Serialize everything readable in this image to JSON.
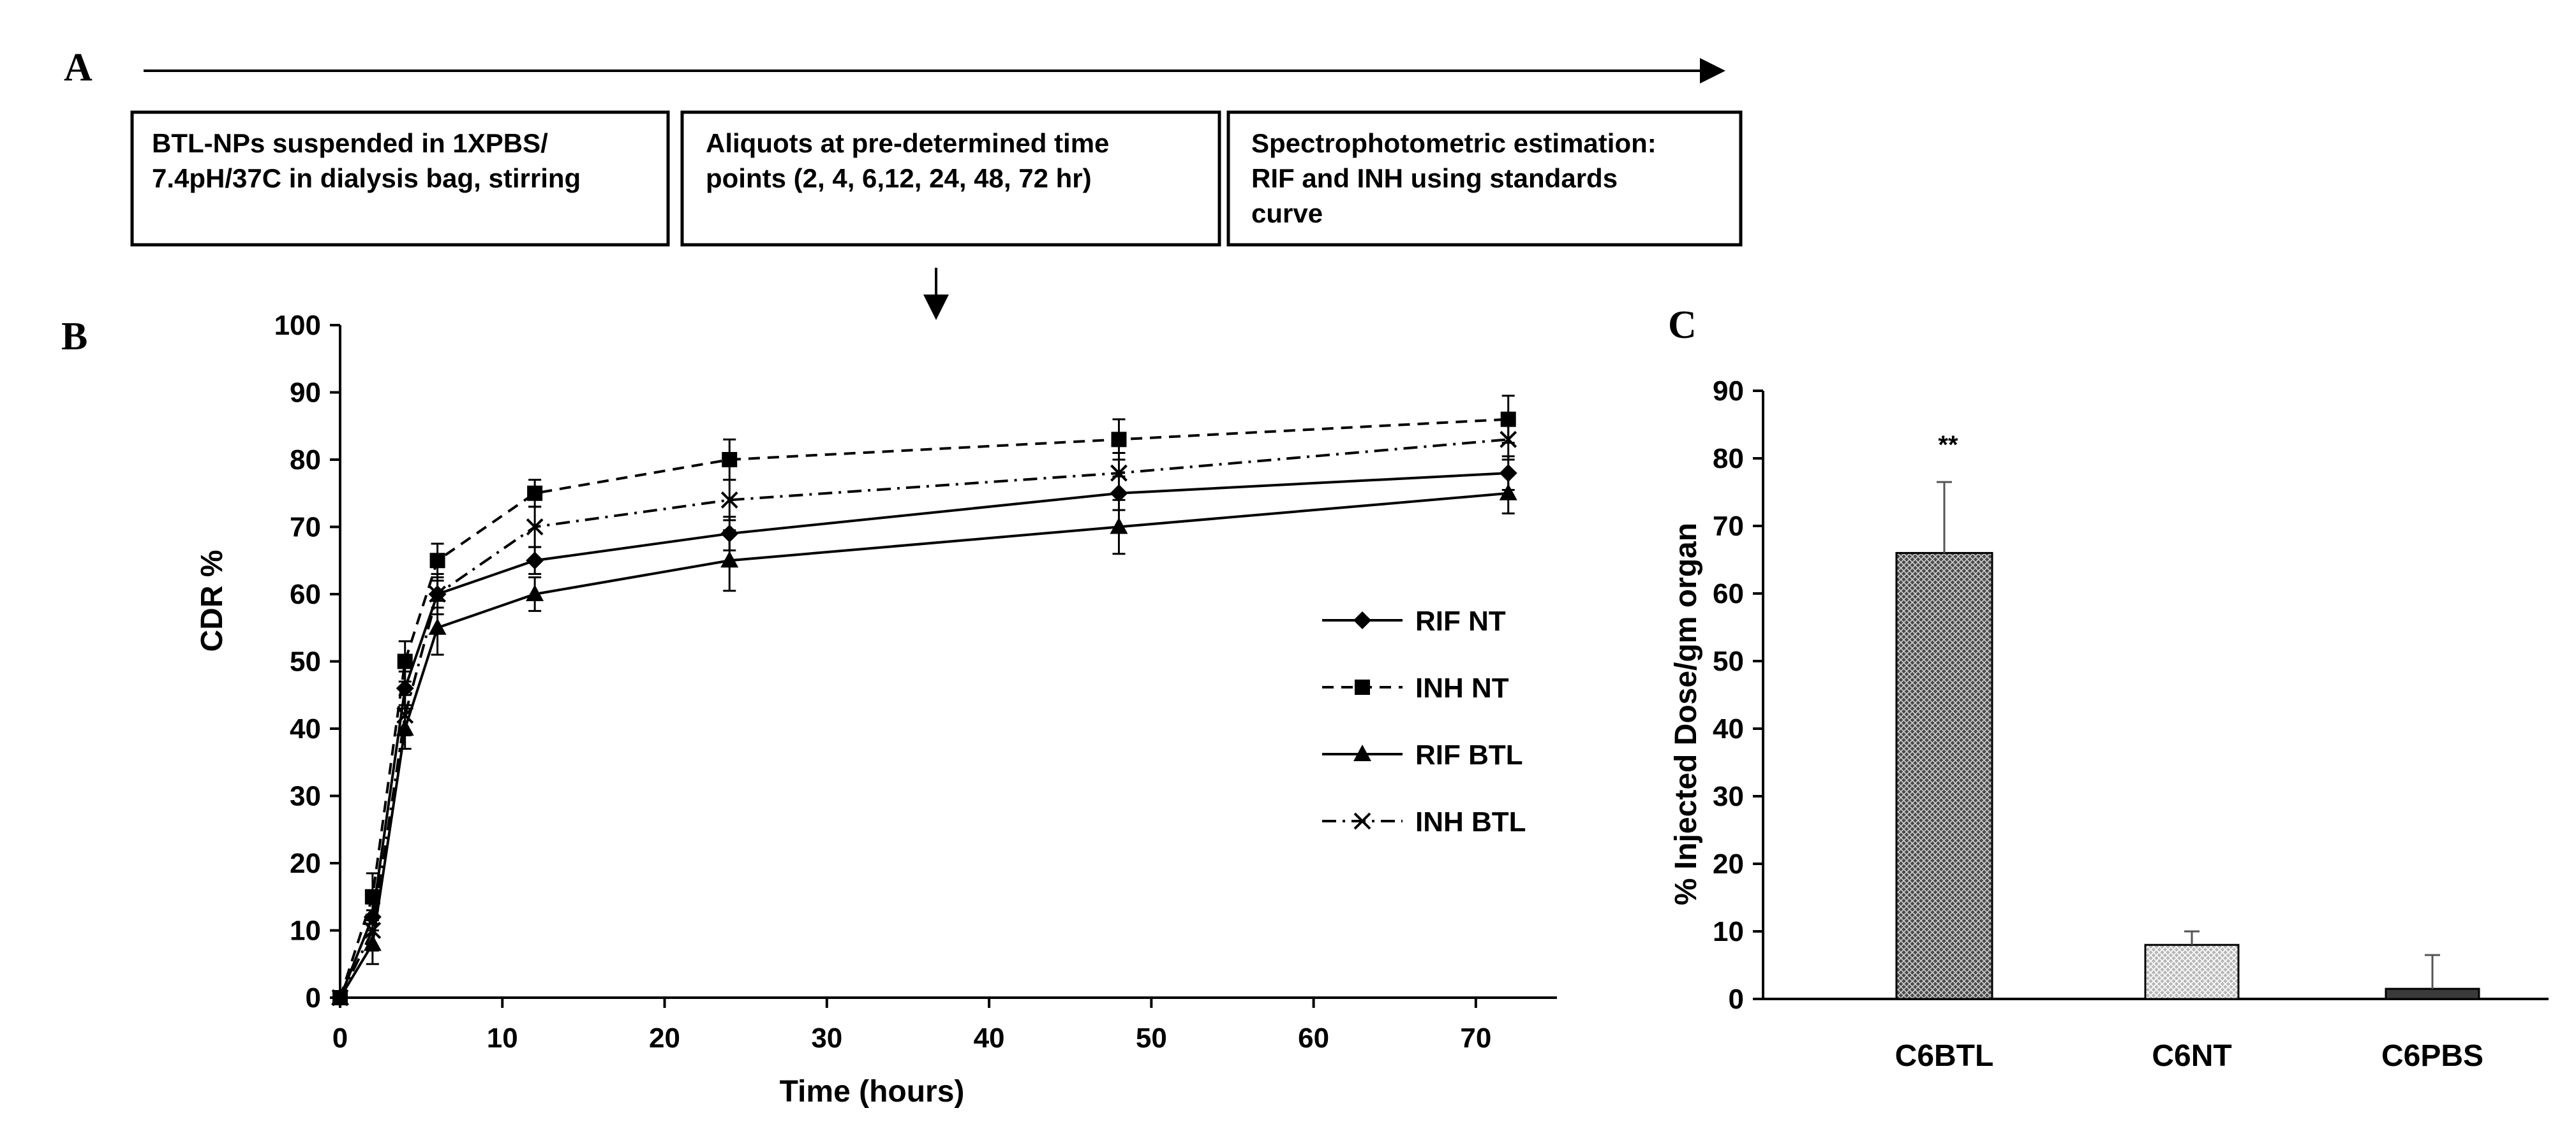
{
  "panel_labels": {
    "a": "A",
    "b": "B",
    "c": "C"
  },
  "workflow": {
    "steps": [
      {
        "line1": "BTL-NPs suspended in 1XPBS/",
        "line2": "7.4pH/37C in dialysis bag, stirring",
        "line3": ""
      },
      {
        "line1": "Aliquots at pre-determined time",
        "line2": "points (2, 4, 6,12, 24, 48, 72 hr)",
        "line3": ""
      },
      {
        "line1": "Spectrophotometric estimation:",
        "line2": "RIF and INH  using standards",
        "line3": "curve"
      }
    ]
  },
  "chart_data": [
    {
      "type": "line",
      "panel": "B",
      "title": "",
      "xlabel": "Time (hours)",
      "ylabel": "CDR %",
      "xlim": [
        0,
        75
      ],
      "ylim": [
        0,
        100
      ],
      "xticks": [
        0,
        10,
        20,
        30,
        40,
        50,
        60,
        70
      ],
      "yticks": [
        0,
        10,
        20,
        30,
        40,
        50,
        60,
        70,
        80,
        90,
        100
      ],
      "x": [
        0,
        2,
        4,
        6,
        12,
        24,
        48,
        72
      ],
      "legend_position": "center-right",
      "series": [
        {
          "name": "RIF NT",
          "marker": "diamond",
          "dash": "solid",
          "values": [
            0,
            12,
            46,
            60,
            65,
            69,
            75,
            78
          ],
          "errors": [
            0,
            2,
            2.5,
            2,
            2,
            2.5,
            2.5,
            2.5
          ]
        },
        {
          "name": "INH NT",
          "marker": "square",
          "dash": "dashed",
          "values": [
            0,
            15,
            50,
            65,
            75,
            80,
            83,
            86
          ],
          "errors": [
            0,
            3.5,
            3,
            2.5,
            2,
            3,
            3,
            3.5
          ]
        },
        {
          "name": "RIF BTL",
          "marker": "triangle",
          "dash": "solid",
          "values": [
            0,
            8,
            40,
            55,
            60,
            65,
            70,
            75
          ],
          "errors": [
            0,
            3,
            3,
            4,
            2.5,
            4.5,
            4,
            3
          ]
        },
        {
          "name": "INH BTL",
          "marker": "x",
          "dash": "dashdot",
          "values": [
            0,
            10,
            42,
            60,
            70,
            74,
            78,
            83
          ],
          "errors": [
            0,
            3,
            3,
            3,
            3,
            3,
            3,
            3
          ]
        }
      ]
    },
    {
      "type": "bar",
      "panel": "C",
      "title": "",
      "xlabel": "",
      "ylabel": "% Injected Dose/gm organ",
      "ylim": [
        0,
        90
      ],
      "yticks": [
        0,
        10,
        20,
        30,
        40,
        50,
        60,
        70,
        80,
        90
      ],
      "categories": [
        "C6BTL",
        "C6NT",
        "C6PBS"
      ],
      "values": [
        66,
        8,
        1.5
      ],
      "errors": [
        10.5,
        2,
        5
      ],
      "annotations": [
        "**",
        "",
        ""
      ]
    }
  ]
}
